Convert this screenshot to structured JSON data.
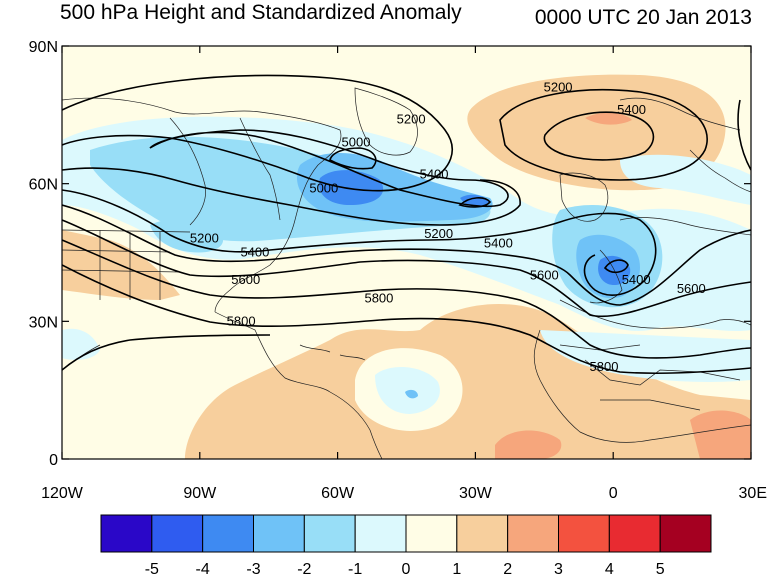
{
  "title_left": "500 hPa Height and Standardized Anomaly",
  "title_right": "0000 UTC 20 Jan 2013",
  "map": {
    "lon_range": [
      -120,
      30
    ],
    "lat_range": [
      0,
      90
    ],
    "lat_ticks": [
      {
        "value": 90,
        "label": "90N"
      },
      {
        "value": 60,
        "label": "60N"
      },
      {
        "value": 30,
        "label": "30N"
      },
      {
        "value": 0,
        "label": "0"
      }
    ],
    "lon_ticks": [
      {
        "value": -120,
        "label": "120W"
      },
      {
        "value": -90,
        "label": "90W"
      },
      {
        "value": -60,
        "label": "60W"
      },
      {
        "value": -30,
        "label": "30W"
      },
      {
        "value": 0,
        "label": "0"
      },
      {
        "value": 30,
        "label": "30E"
      }
    ],
    "contour_labels": [
      {
        "text": "5000",
        "lon": -56,
        "lat": 69
      },
      {
        "text": "5000",
        "lon": -63,
        "lat": 59
      },
      {
        "text": "5200",
        "lon": -89,
        "lat": 48
      },
      {
        "text": "5400",
        "lon": -78,
        "lat": 45
      },
      {
        "text": "5600",
        "lon": -80,
        "lat": 39
      },
      {
        "text": "5800",
        "lon": -81,
        "lat": 30
      },
      {
        "text": "5800",
        "lon": -51,
        "lat": 35
      },
      {
        "text": "5200",
        "lon": -38,
        "lat": 49
      },
      {
        "text": "5400",
        "lon": -25,
        "lat": 47
      },
      {
        "text": "5600",
        "lon": -15,
        "lat": 40
      },
      {
        "text": "5800",
        "lon": -2,
        "lat": 20
      },
      {
        "text": "5600",
        "lon": 17,
        "lat": 37
      },
      {
        "text": "5400",
        "lon": 5,
        "lat": 39
      },
      {
        "text": "5200",
        "lon": -44,
        "lat": 74
      },
      {
        "text": "5400",
        "lon": -39,
        "lat": 62
      },
      {
        "text": "5200",
        "lon": -12,
        "lat": 81
      },
      {
        "text": "5400",
        "lon": 4,
        "lat": 76
      }
    ]
  },
  "colorbar": {
    "colors": [
      "#2a07c8",
      "#2f5cf0",
      "#3e8af2",
      "#6fc2f7",
      "#98def7",
      "#dcf9fd",
      "#fffde6",
      "#f7cf9d",
      "#f6a67c",
      "#f3523f",
      "#e82b31",
      "#a50021"
    ],
    "labels": [
      "-5",
      "-4",
      "-3",
      "-2",
      "-1",
      "0",
      "1",
      "2",
      "3",
      "4",
      "5"
    ]
  }
}
